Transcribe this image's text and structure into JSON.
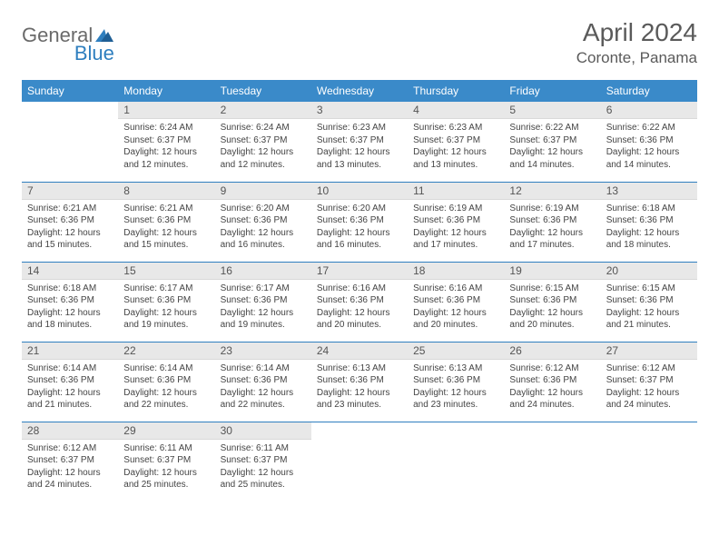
{
  "brand": {
    "part1": "General",
    "part2": "Blue"
  },
  "title": "April 2024",
  "location": "Coronte, Panama",
  "colors": {
    "header_bg": "#3a8ac9",
    "header_text": "#ffffff",
    "daynum_bg": "#e8e8e8",
    "sep": "#2f7fbf",
    "brand_gray": "#6a6a6a",
    "brand_blue": "#2f7fbf"
  },
  "weekdays": [
    "Sunday",
    "Monday",
    "Tuesday",
    "Wednesday",
    "Thursday",
    "Friday",
    "Saturday"
  ],
  "weeks": [
    [
      {
        "n": "",
        "sr": "",
        "ss": "",
        "dl": ""
      },
      {
        "n": "1",
        "sr": "6:24 AM",
        "ss": "6:37 PM",
        "dl": "12 hours and 12 minutes."
      },
      {
        "n": "2",
        "sr": "6:24 AM",
        "ss": "6:37 PM",
        "dl": "12 hours and 12 minutes."
      },
      {
        "n": "3",
        "sr": "6:23 AM",
        "ss": "6:37 PM",
        "dl": "12 hours and 13 minutes."
      },
      {
        "n": "4",
        "sr": "6:23 AM",
        "ss": "6:37 PM",
        "dl": "12 hours and 13 minutes."
      },
      {
        "n": "5",
        "sr": "6:22 AM",
        "ss": "6:37 PM",
        "dl": "12 hours and 14 minutes."
      },
      {
        "n": "6",
        "sr": "6:22 AM",
        "ss": "6:36 PM",
        "dl": "12 hours and 14 minutes."
      }
    ],
    [
      {
        "n": "7",
        "sr": "6:21 AM",
        "ss": "6:36 PM",
        "dl": "12 hours and 15 minutes."
      },
      {
        "n": "8",
        "sr": "6:21 AM",
        "ss": "6:36 PM",
        "dl": "12 hours and 15 minutes."
      },
      {
        "n": "9",
        "sr": "6:20 AM",
        "ss": "6:36 PM",
        "dl": "12 hours and 16 minutes."
      },
      {
        "n": "10",
        "sr": "6:20 AM",
        "ss": "6:36 PM",
        "dl": "12 hours and 16 minutes."
      },
      {
        "n": "11",
        "sr": "6:19 AM",
        "ss": "6:36 PM",
        "dl": "12 hours and 17 minutes."
      },
      {
        "n": "12",
        "sr": "6:19 AM",
        "ss": "6:36 PM",
        "dl": "12 hours and 17 minutes."
      },
      {
        "n": "13",
        "sr": "6:18 AM",
        "ss": "6:36 PM",
        "dl": "12 hours and 18 minutes."
      }
    ],
    [
      {
        "n": "14",
        "sr": "6:18 AM",
        "ss": "6:36 PM",
        "dl": "12 hours and 18 minutes."
      },
      {
        "n": "15",
        "sr": "6:17 AM",
        "ss": "6:36 PM",
        "dl": "12 hours and 19 minutes."
      },
      {
        "n": "16",
        "sr": "6:17 AM",
        "ss": "6:36 PM",
        "dl": "12 hours and 19 minutes."
      },
      {
        "n": "17",
        "sr": "6:16 AM",
        "ss": "6:36 PM",
        "dl": "12 hours and 20 minutes."
      },
      {
        "n": "18",
        "sr": "6:16 AM",
        "ss": "6:36 PM",
        "dl": "12 hours and 20 minutes."
      },
      {
        "n": "19",
        "sr": "6:15 AM",
        "ss": "6:36 PM",
        "dl": "12 hours and 20 minutes."
      },
      {
        "n": "20",
        "sr": "6:15 AM",
        "ss": "6:36 PM",
        "dl": "12 hours and 21 minutes."
      }
    ],
    [
      {
        "n": "21",
        "sr": "6:14 AM",
        "ss": "6:36 PM",
        "dl": "12 hours and 21 minutes."
      },
      {
        "n": "22",
        "sr": "6:14 AM",
        "ss": "6:36 PM",
        "dl": "12 hours and 22 minutes."
      },
      {
        "n": "23",
        "sr": "6:14 AM",
        "ss": "6:36 PM",
        "dl": "12 hours and 22 minutes."
      },
      {
        "n": "24",
        "sr": "6:13 AM",
        "ss": "6:36 PM",
        "dl": "12 hours and 23 minutes."
      },
      {
        "n": "25",
        "sr": "6:13 AM",
        "ss": "6:36 PM",
        "dl": "12 hours and 23 minutes."
      },
      {
        "n": "26",
        "sr": "6:12 AM",
        "ss": "6:36 PM",
        "dl": "12 hours and 24 minutes."
      },
      {
        "n": "27",
        "sr": "6:12 AM",
        "ss": "6:37 PM",
        "dl": "12 hours and 24 minutes."
      }
    ],
    [
      {
        "n": "28",
        "sr": "6:12 AM",
        "ss": "6:37 PM",
        "dl": "12 hours and 24 minutes."
      },
      {
        "n": "29",
        "sr": "6:11 AM",
        "ss": "6:37 PM",
        "dl": "12 hours and 25 minutes."
      },
      {
        "n": "30",
        "sr": "6:11 AM",
        "ss": "6:37 PM",
        "dl": "12 hours and 25 minutes."
      },
      {
        "n": "",
        "sr": "",
        "ss": "",
        "dl": ""
      },
      {
        "n": "",
        "sr": "",
        "ss": "",
        "dl": ""
      },
      {
        "n": "",
        "sr": "",
        "ss": "",
        "dl": ""
      },
      {
        "n": "",
        "sr": "",
        "ss": "",
        "dl": ""
      }
    ]
  ],
  "labels": {
    "sunrise": "Sunrise:",
    "sunset": "Sunset:",
    "daylight": "Daylight:"
  }
}
